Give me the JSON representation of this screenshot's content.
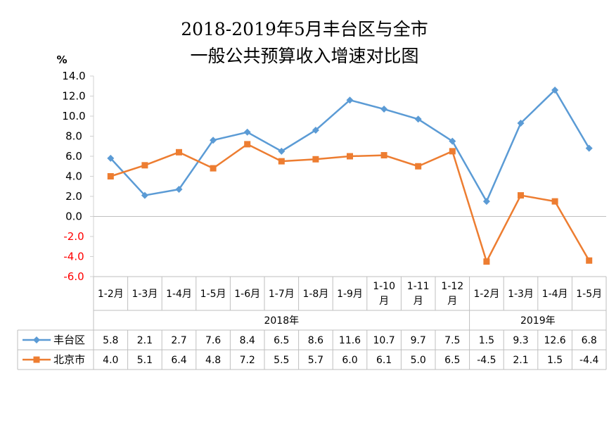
{
  "chart_data": {
    "type": "line",
    "title_line1": "2018-2019年5月丰台区与全市",
    "title_line2": "一般公共预算收入增速对比图",
    "yunit": "%",
    "ylim": [
      -6.0,
      14.0
    ],
    "yticks": [
      "14.0",
      "12.0",
      "10.0",
      "8.0",
      "6.0",
      "4.0",
      "2.0",
      "0.0",
      "-2.0",
      "-4.0",
      "-6.0"
    ],
    "negative_tick_color": "#ff0000",
    "categories": [
      {
        "line1": "1-2月",
        "line2": ""
      },
      {
        "line1": "1-3月",
        "line2": ""
      },
      {
        "line1": "1-4月",
        "line2": ""
      },
      {
        "line1": "1-5月",
        "line2": ""
      },
      {
        "line1": "1-6月",
        "line2": ""
      },
      {
        "line1": "1-7月",
        "line2": ""
      },
      {
        "line1": "1-8月",
        "line2": ""
      },
      {
        "line1": "1-9月",
        "line2": ""
      },
      {
        "line1": "1-10",
        "line2": "月"
      },
      {
        "line1": "1-11",
        "line2": "月"
      },
      {
        "line1": "1-12",
        "line2": "月"
      },
      {
        "line1": "1-2月",
        "line2": ""
      },
      {
        "line1": "1-3月",
        "line2": ""
      },
      {
        "line1": "1-4月",
        "line2": ""
      },
      {
        "line1": "1-5月",
        "line2": ""
      }
    ],
    "groups": [
      {
        "label": "2018年",
        "start": 0,
        "end": 10
      },
      {
        "label": "2019年",
        "start": 11,
        "end": 14
      }
    ],
    "series": [
      {
        "name": "丰台区",
        "color": "#5b9bd5",
        "marker": "diamond",
        "values": [
          5.8,
          2.1,
          2.7,
          7.6,
          8.4,
          6.5,
          8.6,
          11.6,
          10.7,
          9.7,
          7.5,
          1.5,
          9.3,
          12.6,
          6.8
        ],
        "labels": [
          "5.8",
          "2.1",
          "2.7",
          "7.6",
          "8.4",
          "6.5",
          "8.6",
          "11.6",
          "10.7",
          "9.7",
          "7.5",
          "1.5",
          "9.3",
          "12.6",
          "6.8"
        ]
      },
      {
        "name": "北京市",
        "color": "#ed7d31",
        "marker": "square",
        "values": [
          4.0,
          5.1,
          6.4,
          4.8,
          7.2,
          5.5,
          5.7,
          6.0,
          6.1,
          5.0,
          6.5,
          -4.5,
          2.1,
          1.5,
          -4.4
        ],
        "labels": [
          "4.0",
          "5.1",
          "6.4",
          "4.8",
          "7.2",
          "5.5",
          "5.7",
          "6.0",
          "6.1",
          "5.0",
          "6.5",
          "-4.5",
          "2.1",
          "1.5",
          "-4.4"
        ]
      }
    ]
  }
}
